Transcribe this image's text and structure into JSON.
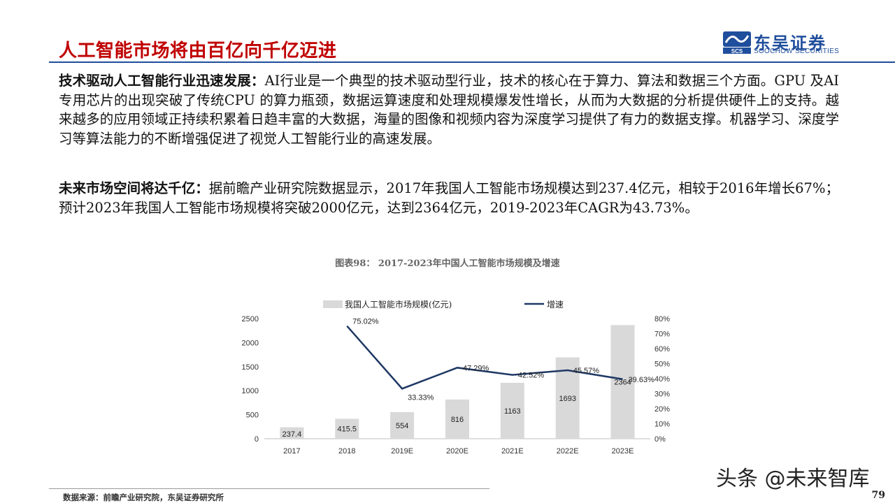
{
  "header": {
    "title": "人工智能市场将由百亿向千亿迈进",
    "logo_cn": "东吴证券",
    "logo_en": "SOOCHOW SECURITIES",
    "logo_mark_text": "SCS"
  },
  "body": {
    "p1_lead": "技术驱动人工智能行业迅速发展：",
    "p1_text": "AI行业是一个典型的技术驱动型行业，技术的核心在于算力、算法和数据三个方面。GPU 及AI 专用芯片的出现突破了传统CPU 的算力瓶颈，数据运算速度和处理规模爆发性增长，从而为大数据的分析提供硬件上的支持。越来越多的应用领域正持续积累着日趋丰富的大数据，海量的图像和视频内容为深度学习提供了有力的数据支撑。机器学习、深度学习等算法能力的不断增强促进了视觉人工智能行业的高速发展。",
    "p2_lead": "未来市场空间将达千亿：",
    "p2_text": "据前瞻产业研究院数据显示，2017年我国人工智能市场规模达到237.4亿元，相较于2016年增长67%；预计2023年我国人工智能市场规模将突破2000亿元，达到2364亿元，2019-2023年CAGR为43.73%。"
  },
  "chart_title": "图表98： 2017-2023年中国人工智能市场规模及增速",
  "chart_data": {
    "type": "bar",
    "categories": [
      "2017",
      "2018",
      "2019E",
      "2020E",
      "2021E",
      "2022E",
      "2023E"
    ],
    "series": [
      {
        "name": "我国人工智能市场规模(亿元)",
        "type": "bar",
        "axis": "left",
        "values": [
          237.4,
          415.5,
          554,
          816,
          1163,
          1693,
          2364
        ],
        "labels": [
          "237.4",
          "415.5",
          "554",
          "816",
          "1163",
          "1693",
          "2364"
        ],
        "color": "#d9d9d9"
      },
      {
        "name": "增速",
        "type": "line",
        "axis": "right",
        "values": [
          null,
          75.02,
          33.33,
          47.29,
          42.52,
          45.57,
          39.63
        ],
        "labels": [
          "",
          "75.02%",
          "33.33%",
          "47.29%",
          "42.52%",
          "45.57%",
          "39.63%"
        ],
        "color": "#1f3864"
      }
    ],
    "y_left": {
      "min": 0,
      "max": 2500,
      "ticks": [
        "0",
        "500",
        "1000",
        "1500",
        "2000",
        "2500"
      ]
    },
    "y_right": {
      "min": 0,
      "max": 80,
      "ticks": [
        "0%",
        "10%",
        "20%",
        "30%",
        "40%",
        "50%",
        "60%",
        "70%",
        "80%"
      ]
    },
    "grid": false,
    "legend_position": "top"
  },
  "footer": {
    "source": "数据来源：前瞻产业研究院，东吴证券研究所",
    "page_number": "79",
    "watermark": "头条 @未来智库"
  }
}
